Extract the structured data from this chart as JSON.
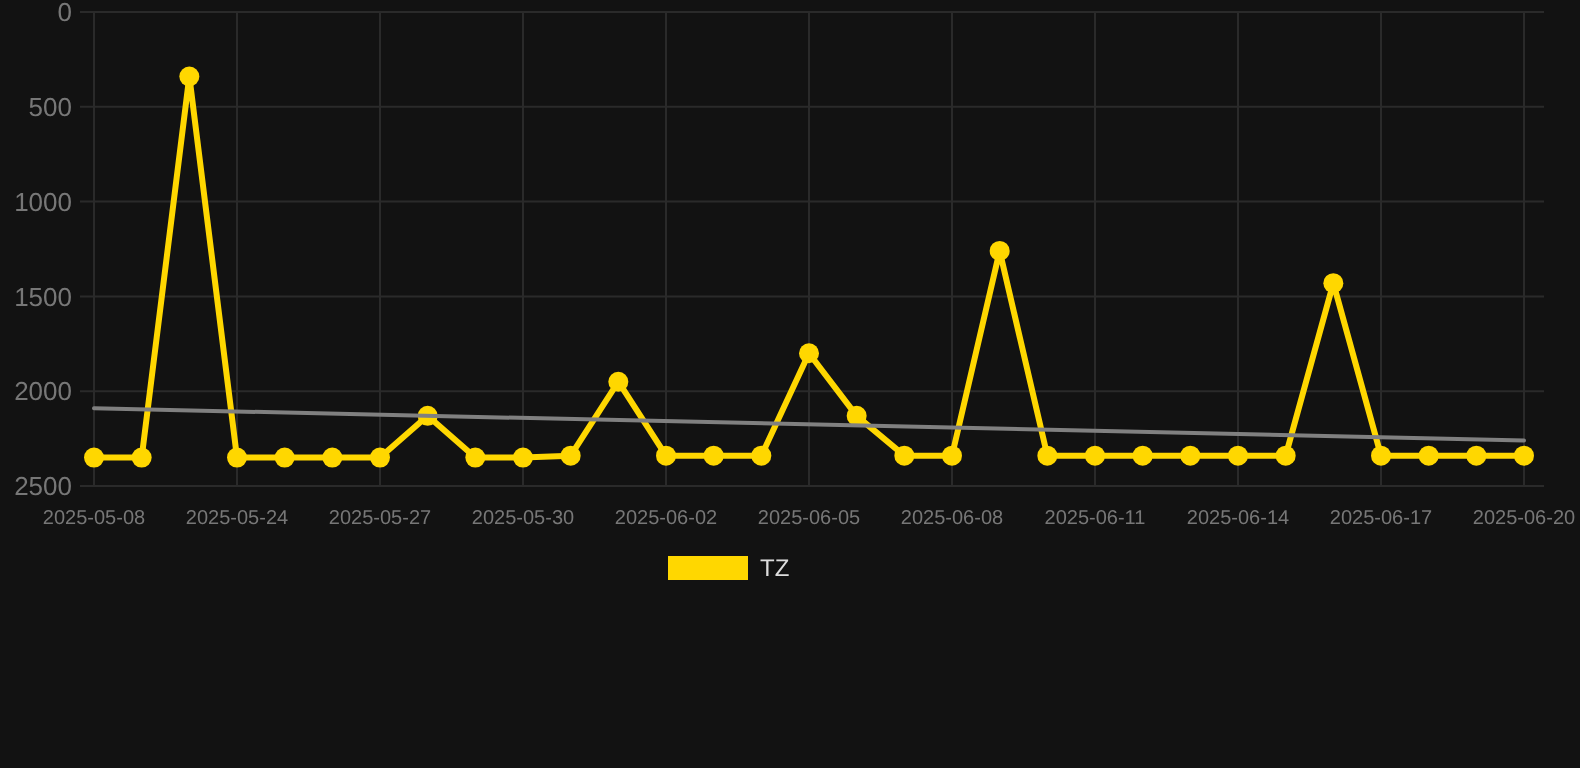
{
  "chart_data": {
    "type": "line",
    "categories": [
      "2025-05-08",
      null,
      null,
      "2025-05-24",
      null,
      null,
      "2025-05-27",
      null,
      null,
      "2025-05-30",
      null,
      null,
      "2025-06-02",
      null,
      null,
      "2025-06-05",
      null,
      null,
      "2025-06-08",
      null,
      null,
      "2025-06-11",
      null,
      null,
      "2025-06-14",
      null,
      null,
      "2025-06-17",
      null,
      null,
      "2025-06-20"
    ],
    "series": [
      {
        "name": "TZ",
        "color": "#ffd700",
        "marker": "circle",
        "values": [
          2350,
          2350,
          340,
          2350,
          2350,
          2350,
          2350,
          2130,
          2350,
          2350,
          2340,
          1950,
          2340,
          2340,
          2340,
          1800,
          2130,
          2340,
          2340,
          1260,
          2340,
          2340,
          2340,
          2340,
          2340,
          2340,
          1430,
          2340,
          2340,
          2340,
          2340
        ]
      },
      {
        "type": "line",
        "color": "#808080",
        "marker": "none",
        "values": [
          2090,
          null,
          null,
          null,
          null,
          null,
          null,
          null,
          null,
          null,
          null,
          null,
          null,
          null,
          null,
          null,
          null,
          null,
          null,
          null,
          null,
          null,
          null,
          null,
          null,
          null,
          null,
          null,
          null,
          null,
          2260
        ]
      }
    ],
    "ylim": [
      2500,
      0
    ],
    "yticks": [
      0,
      500,
      1000,
      1500,
      2000,
      2500
    ],
    "grid": true,
    "legend": "bottom"
  }
}
